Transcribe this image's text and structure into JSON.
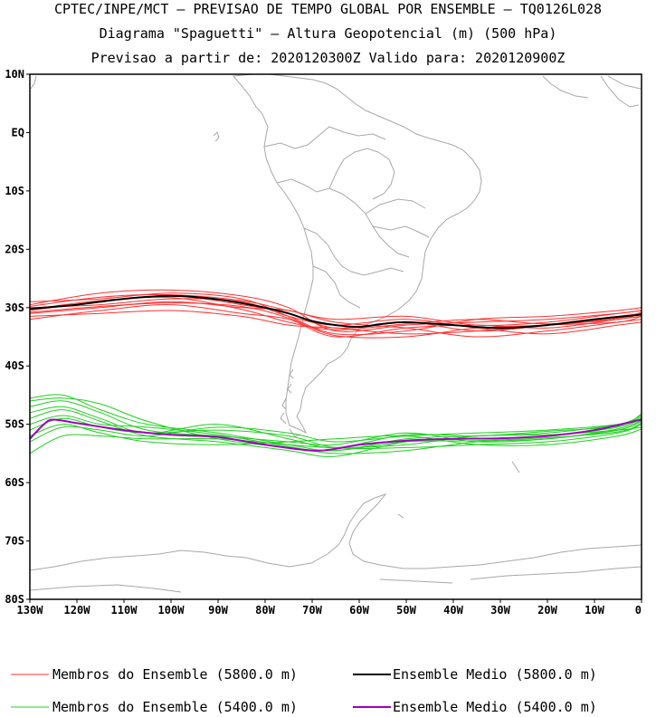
{
  "header": {
    "line1": "CPTEC/INPE/MCT – PREVISAO DE TEMPO GLOBAL POR ENSEMBLE – TQ0126L028",
    "line2": "Diagrama \"Spaguetti\" – Altura Geopotencial (m) (500 hPa)",
    "line3": "Previsao a partir de: 2020120300Z  Valido para: 2020120900Z"
  },
  "map": {
    "lon_range": [
      -130,
      0
    ],
    "lat_range": [
      -80,
      10
    ],
    "lat_ticks": [
      {
        "value": 10,
        "label": "10N"
      },
      {
        "value": 0,
        "label": "EQ"
      },
      {
        "value": -10,
        "label": "10S"
      },
      {
        "value": -20,
        "label": "20S"
      },
      {
        "value": -30,
        "label": "30S"
      },
      {
        "value": -40,
        "label": "40S"
      },
      {
        "value": -50,
        "label": "50S"
      },
      {
        "value": -60,
        "label": "60S"
      },
      {
        "value": -70,
        "label": "70S"
      },
      {
        "value": -80,
        "label": "80S"
      }
    ],
    "lon_ticks": [
      {
        "value": -130,
        "label": "130W"
      },
      {
        "value": -120,
        "label": "120W"
      },
      {
        "value": -110,
        "label": "110W"
      },
      {
        "value": -100,
        "label": "100W"
      },
      {
        "value": -90,
        "label": "90W"
      },
      {
        "value": -80,
        "label": "80W"
      },
      {
        "value": -70,
        "label": "70W"
      },
      {
        "value": -60,
        "label": "60W"
      },
      {
        "value": -50,
        "label": "50W"
      },
      {
        "value": -40,
        "label": "40W"
      },
      {
        "value": -30,
        "label": "30W"
      },
      {
        "value": -20,
        "label": "20W"
      },
      {
        "value": -10,
        "label": "10W"
      },
      {
        "value": 0,
        "label": "0"
      }
    ],
    "colors": {
      "members_5800": "#ff3030",
      "mean_5800": "#000000",
      "members_5400": "#20d020",
      "mean_5400": "#a000c0",
      "coastline": "#a8a8a8"
    },
    "mean_5800": {
      "lon": [
        -130,
        -120,
        -110,
        -100,
        -90,
        -80,
        -75,
        -70,
        -65,
        -60,
        -55,
        -50,
        -40,
        -30,
        -20,
        -10,
        0
      ],
      "lat": [
        -30.2,
        -29.5,
        -28.5,
        -28.0,
        -28.6,
        -30.0,
        -31.0,
        -32.3,
        -33.0,
        -33.3,
        -32.8,
        -32.5,
        -33.0,
        -33.5,
        -33.0,
        -32.0,
        -31.2
      ]
    },
    "mean_5400": {
      "lon": [
        -130,
        -127,
        -125,
        -120,
        -110,
        -100,
        -90,
        -80,
        -70,
        -65,
        -60,
        -50,
        -40,
        -30,
        -20,
        -10,
        0
      ],
      "lat": [
        -52.5,
        -50.0,
        -49.2,
        -49.8,
        -51.0,
        -51.8,
        -52.2,
        -53.5,
        -54.5,
        -54.2,
        -53.5,
        -52.8,
        -52.5,
        -52.4,
        -52.0,
        -51.0,
        -49.2
      ]
    },
    "members_5800": [
      {
        "lon": [
          -130,
          -115,
          -100,
          -85,
          -75,
          -65,
          -50,
          -35,
          -20,
          -5,
          0
        ],
        "lat": [
          -29.0,
          -28.5,
          -27.5,
          -28.5,
          -31.5,
          -34.5,
          -34.0,
          -32.0,
          -31.5,
          -30.5,
          -30.0
        ]
      },
      {
        "lon": [
          -130,
          -115,
          -100,
          -85,
          -75,
          -65,
          -50,
          -35,
          -20,
          -5,
          0
        ],
        "lat": [
          -30.5,
          -29.0,
          -28.0,
          -29.5,
          -31.0,
          -33.5,
          -32.5,
          -34.0,
          -33.0,
          -31.5,
          -31.0
        ]
      },
      {
        "lon": [
          -130,
          -115,
          -100,
          -85,
          -75,
          -65,
          -50,
          -35,
          -20,
          -5,
          0
        ],
        "lat": [
          -31.0,
          -30.0,
          -29.0,
          -30.0,
          -30.5,
          -32.5,
          -33.5,
          -35.0,
          -34.0,
          -32.5,
          -32.0
        ]
      },
      {
        "lon": [
          -130,
          -115,
          -100,
          -85,
          -75,
          -65,
          -50,
          -35,
          -20,
          -5,
          0
        ],
        "lat": [
          -29.5,
          -27.5,
          -27.0,
          -28.0,
          -30.0,
          -34.0,
          -33.0,
          -32.5,
          -32.0,
          -31.0,
          -30.5
        ]
      },
      {
        "lon": [
          -130,
          -115,
          -100,
          -85,
          -75,
          -65,
          -50,
          -35,
          -20,
          -5,
          0
        ],
        "lat": [
          -32.0,
          -30.5,
          -29.5,
          -31.0,
          -32.0,
          -35.0,
          -33.5,
          -33.0,
          -33.5,
          -32.0,
          -31.5
        ]
      },
      {
        "lon": [
          -130,
          -115,
          -100,
          -85,
          -75,
          -65,
          -50,
          -35,
          -20,
          -5,
          0
        ],
        "lat": [
          -30.0,
          -29.5,
          -28.5,
          -29.0,
          -31.5,
          -33.0,
          -32.0,
          -33.5,
          -34.5,
          -33.0,
          -32.5
        ]
      },
      {
        "lon": [
          -130,
          -115,
          -100,
          -85,
          -75,
          -65,
          -50,
          -35,
          -20,
          -5,
          0
        ],
        "lat": [
          -31.5,
          -31.0,
          -30.5,
          -31.5,
          -33.0,
          -33.5,
          -34.5,
          -34.0,
          -33.0,
          -32.0,
          -31.0
        ]
      },
      {
        "lon": [
          -130,
          -115,
          -100,
          -85,
          -75,
          -65,
          -50,
          -35,
          -20,
          -5,
          0
        ],
        "lat": [
          -29.8,
          -28.2,
          -27.8,
          -28.8,
          -30.5,
          -32.0,
          -31.5,
          -33.0,
          -32.5,
          -31.0,
          -30.5
        ]
      },
      {
        "lon": [
          -130,
          -115,
          -100,
          -85,
          -75,
          -65,
          -50,
          -35,
          -20,
          -5,
          0
        ],
        "lat": [
          -30.8,
          -29.8,
          -29.2,
          -29.8,
          -31.8,
          -34.8,
          -35.0,
          -33.5,
          -33.0,
          -32.5,
          -31.5
        ]
      },
      {
        "lon": [
          -130,
          -115,
          -100,
          -85,
          -75,
          -65,
          -50,
          -35,
          -20,
          -5,
          0
        ],
        "lat": [
          -30.3,
          -28.8,
          -28.3,
          -30.3,
          -32.5,
          -33.8,
          -32.8,
          -32.0,
          -32.8,
          -31.8,
          -30.8
        ]
      }
    ],
    "members_5400": [
      {
        "lon": [
          -130,
          -123,
          -115,
          -105,
          -90,
          -75,
          -65,
          -50,
          -35,
          -20,
          -5,
          0
        ],
        "lat": [
          -45.5,
          -45.0,
          -47.5,
          -50.0,
          -51.5,
          -53.5,
          -54.5,
          -52.5,
          -52.0,
          -51.5,
          -50.0,
          -48.5
        ]
      },
      {
        "lon": [
          -130,
          -123,
          -115,
          -105,
          -90,
          -75,
          -65,
          -50,
          -35,
          -20,
          -5,
          0
        ],
        "lat": [
          -47.0,
          -46.0,
          -48.0,
          -51.0,
          -52.0,
          -53.0,
          -53.5,
          -51.5,
          -53.0,
          -52.5,
          -51.0,
          -49.5
        ]
      },
      {
        "lon": [
          -130,
          -123,
          -115,
          -105,
          -90,
          -75,
          -65,
          -50,
          -35,
          -20,
          -5,
          0
        ],
        "lat": [
          -49.0,
          -47.5,
          -49.5,
          -52.0,
          -53.0,
          -54.5,
          -55.5,
          -53.0,
          -52.5,
          -52.0,
          -50.5,
          -49.0
        ]
      },
      {
        "lon": [
          -130,
          -123,
          -115,
          -105,
          -90,
          -75,
          -65,
          -50,
          -35,
          -20,
          -5,
          0
        ],
        "lat": [
          -51.0,
          -49.0,
          -50.5,
          -51.5,
          -51.0,
          -52.0,
          -54.0,
          -54.0,
          -53.5,
          -53.0,
          -51.5,
          -50.0
        ]
      },
      {
        "lon": [
          -130,
          -123,
          -115,
          -105,
          -90,
          -75,
          -65,
          -50,
          -35,
          -20,
          -5,
          0
        ],
        "lat": [
          -53.0,
          -50.5,
          -51.0,
          -52.0,
          -50.5,
          -51.5,
          -53.0,
          -52.0,
          -51.5,
          -51.0,
          -50.0,
          -48.8
        ]
      },
      {
        "lon": [
          -130,
          -123,
          -115,
          -105,
          -90,
          -75,
          -65,
          -50,
          -35,
          -20,
          -5,
          0
        ],
        "lat": [
          -55.0,
          -52.0,
          -52.0,
          -52.5,
          -52.5,
          -53.5,
          -54.0,
          -53.5,
          -52.0,
          -51.8,
          -51.0,
          -50.5
        ]
      },
      {
        "lon": [
          -130,
          -123,
          -115,
          -105,
          -90,
          -75,
          -65,
          -50,
          -35,
          -20,
          -5,
          0
        ],
        "lat": [
          -46.0,
          -45.5,
          -46.5,
          -49.5,
          -52.5,
          -54.0,
          -54.5,
          -53.0,
          -52.8,
          -52.3,
          -51.3,
          -49.8
        ]
      },
      {
        "lon": [
          -130,
          -123,
          -115,
          -105,
          -90,
          -75,
          -65,
          -50,
          -35,
          -20,
          -5,
          0
        ],
        "lat": [
          -50.0,
          -48.5,
          -50.0,
          -50.5,
          -51.8,
          -53.8,
          -55.0,
          -54.5,
          -53.0,
          -52.5,
          -50.8,
          -49.3
        ]
      },
      {
        "lon": [
          -130,
          -123,
          -115,
          -105,
          -90,
          -75,
          -65,
          -50,
          -35,
          -20,
          -5,
          0
        ],
        "lat": [
          -52.0,
          -50.0,
          -51.5,
          -53.0,
          -53.5,
          -53.0,
          -52.5,
          -52.0,
          -53.5,
          -53.5,
          -52.0,
          -50.8
        ]
      },
      {
        "lon": [
          -130,
          -123,
          -115,
          -105,
          -90,
          -75,
          -65,
          -50,
          -35,
          -20,
          -5,
          0
        ],
        "lat": [
          -48.0,
          -47.0,
          -49.0,
          -51.5,
          -50.0,
          -52.5,
          -54.0,
          -51.8,
          -52.0,
          -51.2,
          -50.3,
          -48.2
        ]
      }
    ]
  },
  "legend": {
    "members_5800_label": "Membros do Ensemble (5800.0 m)",
    "mean_5800_label": "Ensemble Medio (5800.0 m)",
    "members_5400_label": "Membros do Ensemble (5400.0 m)",
    "mean_5400_label": "Ensemble Medio (5400.0 m)"
  }
}
